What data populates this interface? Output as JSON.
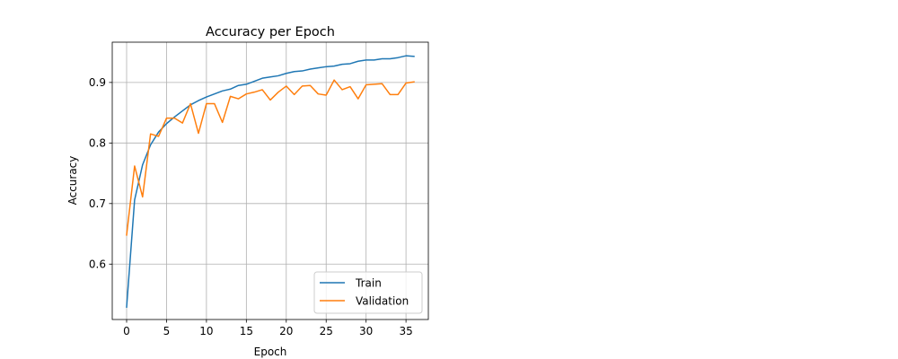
{
  "chart_data": {
    "type": "line",
    "title": "Accuracy per Epoch",
    "xlabel": "Epoch",
    "ylabel": "Accuracy",
    "xlim": [
      -1.8,
      37.8
    ],
    "ylim": [
      0.5085,
      0.9665
    ],
    "xticks": [
      0,
      5,
      10,
      15,
      20,
      25,
      30,
      35
    ],
    "yticks": [
      0.6,
      0.7,
      0.8,
      0.9
    ],
    "grid": true,
    "legend": "lower right",
    "x": [
      0,
      1,
      2,
      3,
      4,
      5,
      6,
      7,
      8,
      9,
      10,
      11,
      12,
      13,
      14,
      15,
      16,
      17,
      18,
      19,
      20,
      21,
      22,
      23,
      24,
      25,
      26,
      27,
      28,
      29,
      30,
      31,
      32,
      33,
      34,
      35,
      36
    ],
    "series": [
      {
        "name": "Train",
        "color": "#1f77b4",
        "values": [
          0.529,
          0.706,
          0.764,
          0.797,
          0.818,
          0.832,
          0.843,
          0.853,
          0.863,
          0.87,
          0.876,
          0.881,
          0.886,
          0.889,
          0.895,
          0.897,
          0.902,
          0.907,
          0.909,
          0.911,
          0.915,
          0.918,
          0.919,
          0.922,
          0.924,
          0.926,
          0.927,
          0.93,
          0.931,
          0.935,
          0.937,
          0.937,
          0.939,
          0.939,
          0.941,
          0.944,
          0.943
        ]
      },
      {
        "name": "Validation",
        "color": "#ff7f0e",
        "values": [
          0.648,
          0.762,
          0.711,
          0.815,
          0.811,
          0.841,
          0.841,
          0.833,
          0.865,
          0.816,
          0.865,
          0.865,
          0.834,
          0.877,
          0.873,
          0.881,
          0.884,
          0.888,
          0.871,
          0.884,
          0.894,
          0.88,
          0.894,
          0.895,
          0.881,
          0.879,
          0.904,
          0.888,
          0.893,
          0.873,
          0.896,
          0.897,
          0.898,
          0.88,
          0.88,
          0.899,
          0.901
        ]
      }
    ]
  }
}
